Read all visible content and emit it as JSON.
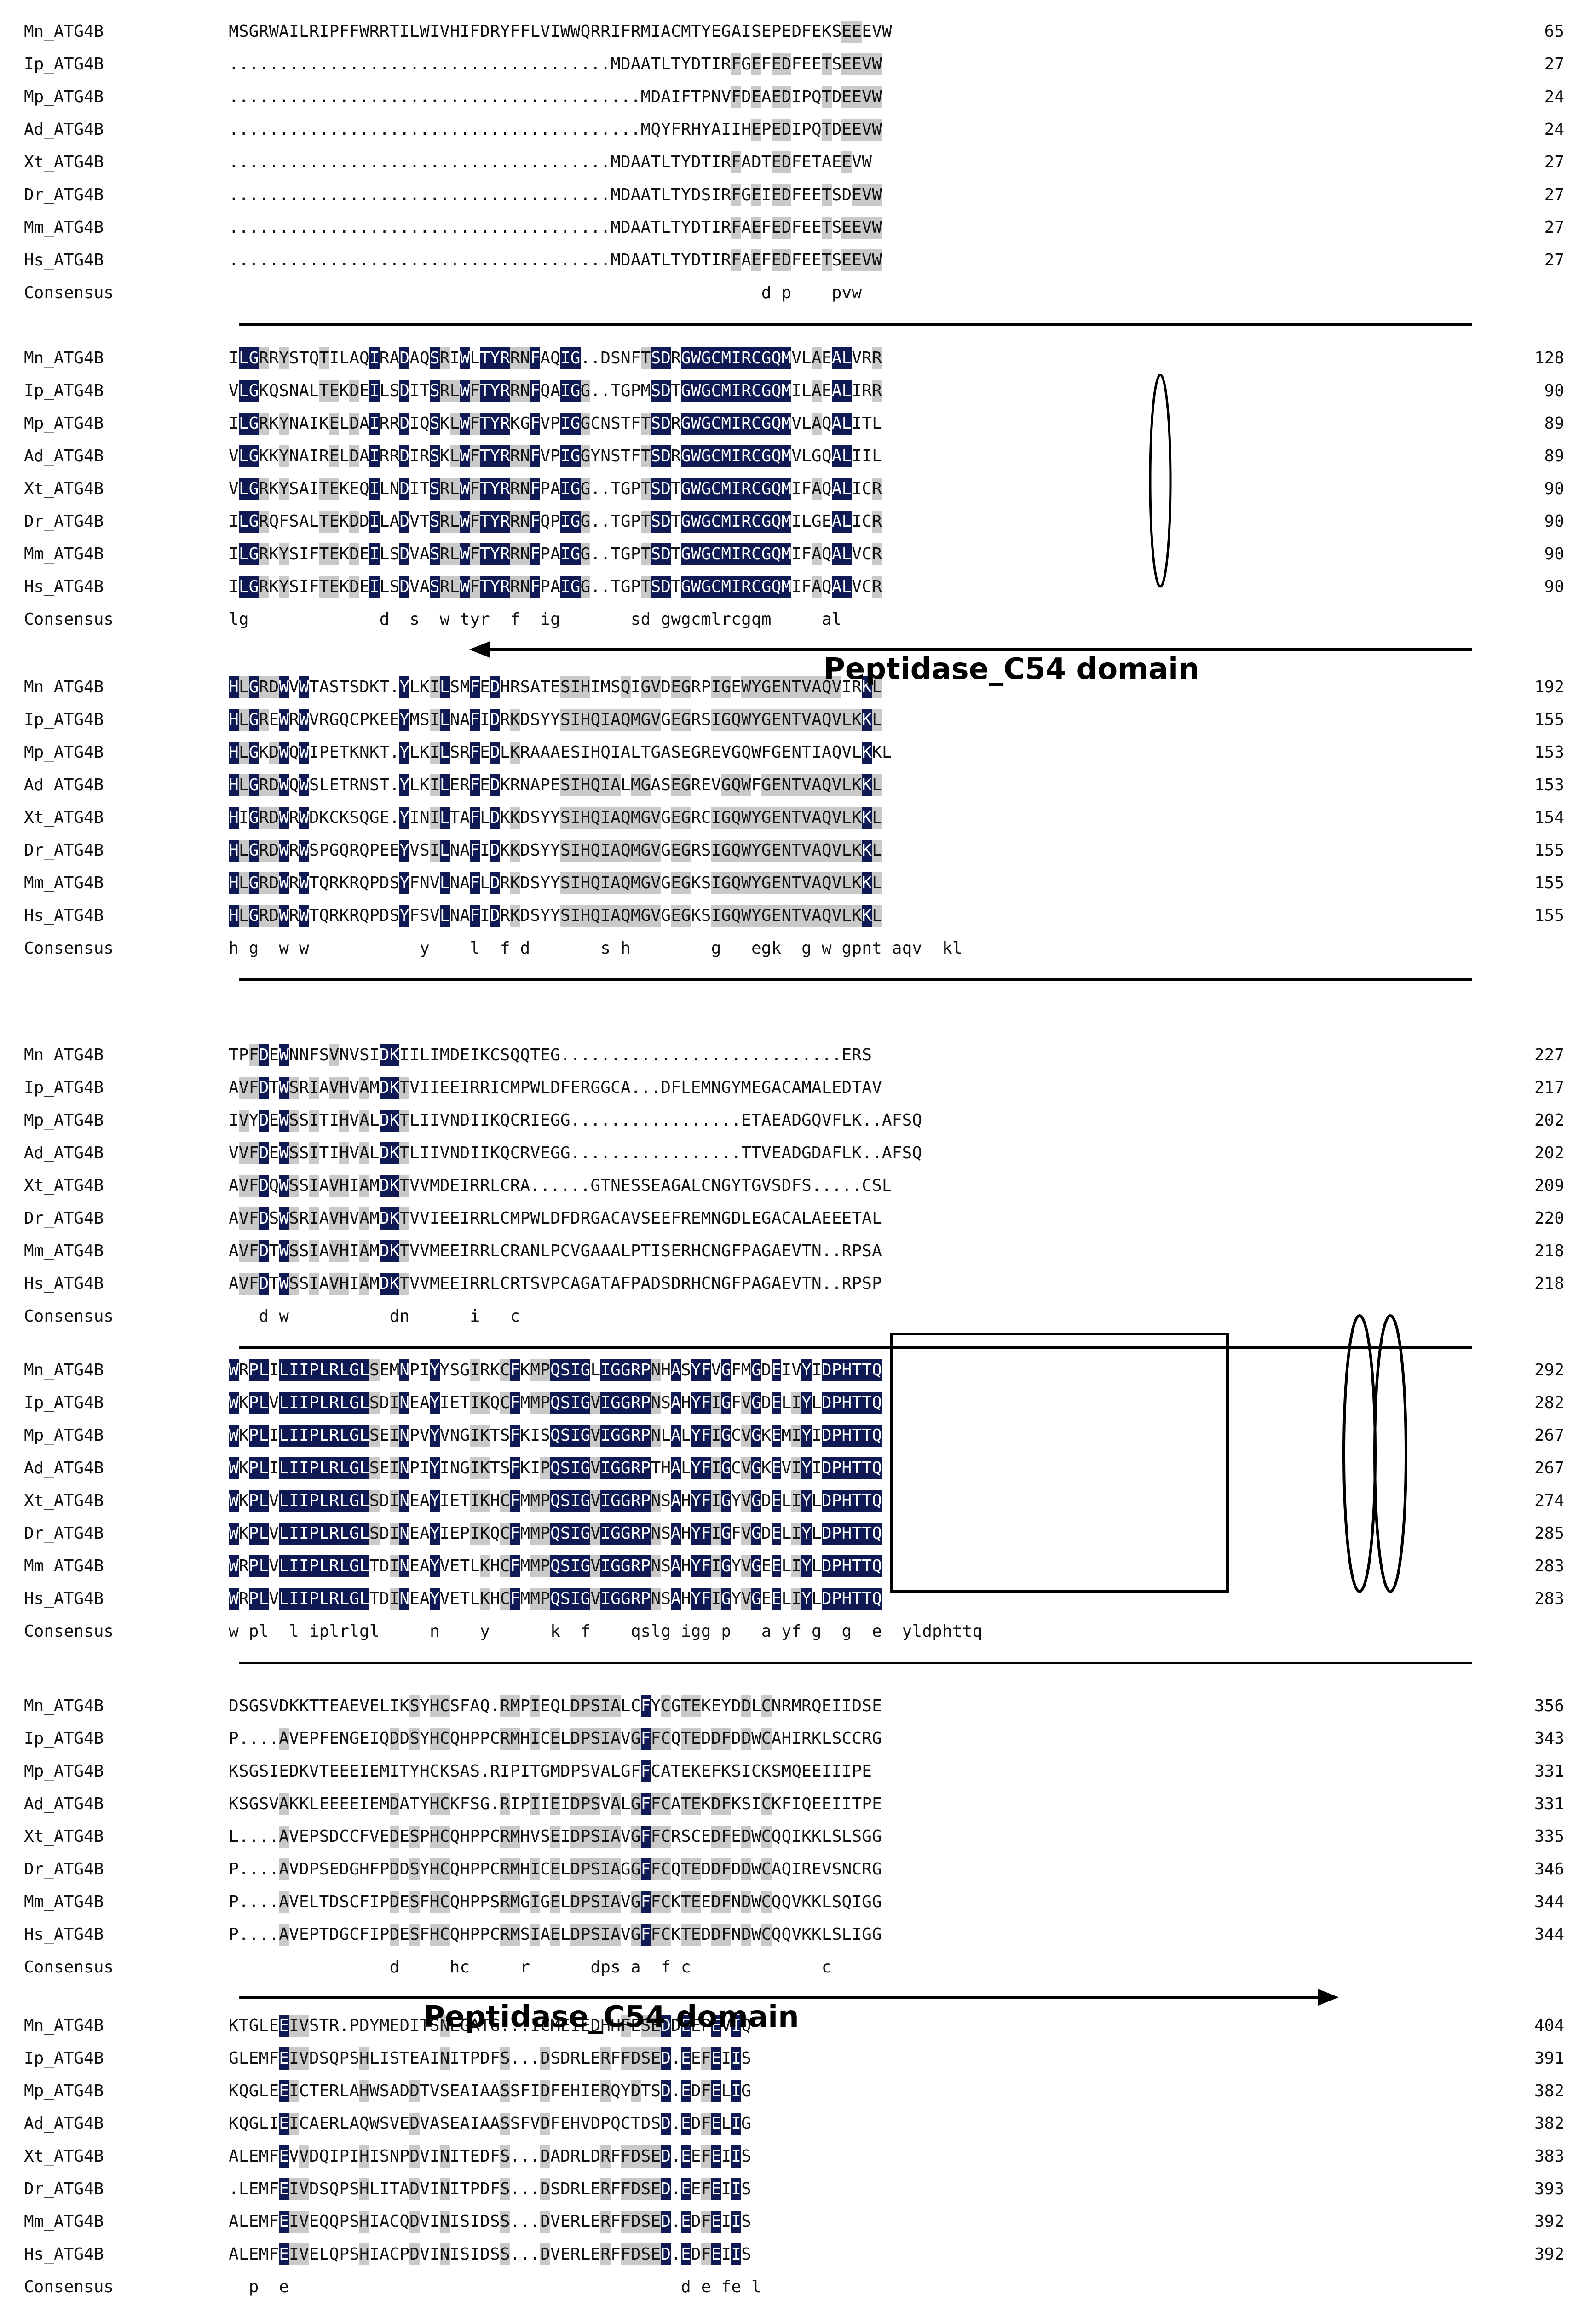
{
  "colors": {
    "identical_bg": "#0f1a55",
    "similar_bg": "#c9c9c9",
    "text": "#111111"
  },
  "blocks": [
    {
      "rows": [
        {
          "name": "Mn_ATG4B",
          "seq": "MSGRWAILRIPFFWRRTILWIVHIFDRYFFLVIWWQRRIFRMIACMTYEGAISEPEDFEKSEEEVW",
          "num": "65"
        },
        {
          "name": "Ip_ATG4B",
          "seq": "......................................MDAATLTYDTIRFGEFEDFEETSEEVW",
          "num": "27"
        },
        {
          "name": "Mp_ATG4B",
          "seq": ".........................................MDAIFTPNVFDEAEDIPQTDEEVW",
          "num": "24"
        },
        {
          "name": "Ad_ATG4B",
          "seq": ".........................................MQYFRHYAIIHEPEDIPQTDEEVW",
          "num": "24"
        },
        {
          "name": "Xt_ATG4B",
          "seq": "......................................MDAATLTYDTIRFADTEDFETAEEVW",
          "num": "27"
        },
        {
          "name": "Dr_ATG4B",
          "seq": "......................................MDAATLTYDSIRFGEIEDFEETSDEVW",
          "num": "27"
        },
        {
          "name": "Mm_ATG4B",
          "seq": "......................................MDAATLTYDTIRFAEFEDFEETSEEVW",
          "num": "27"
        },
        {
          "name": "Hs_ATG4B",
          "seq": "......................................MDAATLTYDTIRFAEFEDFEETSEEVW",
          "num": "27"
        }
      ],
      "consensus": {
        "name": "Consensus",
        "seq": "                                                     d p    pvw"
      }
    },
    {
      "rows": [
        {
          "name": "Mn_ATG4B",
          "seq": "ILGRRYSTQTILAQIRADAQSRIWLTYRRNFAQIG..DSNFTSDRGWGCMIRCGQMVLAEALVRR",
          "num": "128"
        },
        {
          "name": "Ip_ATG4B",
          "seq": "VLGKQSNALTEKDEILSDITSRLWFTYRRNFQAIGG..TGPMSDTGWGCMIRCGQMILAEALIRR",
          "num": "90"
        },
        {
          "name": "Mp_ATG4B",
          "seq": "ILGRKYNAIKELDAIRRDIQSKLWFTYRKGFVPIGGCNSTFTSDRGWGCMIRCGQMVLAQALITL",
          "num": "89"
        },
        {
          "name": "Ad_ATG4B",
          "seq": "VLGKKYNAIRELDAIRRDIRSKLWFTYRRNFVPIGGYNSTFTSDRGWGCMIRCGQMVLGQALIIL",
          "num": "89"
        },
        {
          "name": "Xt_ATG4B",
          "seq": "VLGRKYSAITEKEQILNDITSRLWFTYRRNFPAIGG..TGPTSDTGWGCMIRCGQMIFAQALICR",
          "num": "90"
        },
        {
          "name": "Dr_ATG4B",
          "seq": "ILGRQFSALTEKDDILADVTSRLWFTYRRNFQPIGG..TGPTSDTGWGCMIRCGQMILGEALICR",
          "num": "90"
        },
        {
          "name": "Mm_ATG4B",
          "seq": "ILGRKYSIFTEKDEILSDVASRLWFTYRRNFPAIGG..TGPTSDTGWGCMIRCGQMIFAQALVCR",
          "num": "90"
        },
        {
          "name": "Hs_ATG4B",
          "seq": "ILGRKYSIFTEKDEILSDVASRLWFTYRRNFPAIGG..TGPTSDTGWGCMIRCGQMIFAQALVCR",
          "num": "90"
        }
      ],
      "consensus": {
        "name": "Consensus",
        "seq": "lg             d  s  w tyr  f  ig       sd gwgcmlrcgqm     al"
      },
      "domain": {
        "label": "Peptidase_C54 domain",
        "arrow": "left"
      }
    },
    {
      "rows": [
        {
          "name": "Mn_ATG4B",
          "seq": "HLGRDWVWTASTSDKT.YLKILSMFEDHRSATESIHIMSQIGVDEGRPIGEWYGENTVAQVIRKL",
          "num": "192"
        },
        {
          "name": "Ip_ATG4B",
          "seq": "HLGREWRWVRGQCPKEEYMSILNAFIDRKDSYYSIHQIAQMGVGEGRSIGQWYGENTVAQVLKKL",
          "num": "155"
        },
        {
          "name": "Mp_ATG4B",
          "seq": "HLGKDWQWIPETKNKT.YLKILSRFEDLKRAAAESIHQIALTGASEGREVGQWFGENTIAQVLKKL",
          "num": "153"
        },
        {
          "name": "Ad_ATG4B",
          "seq": "HLGRDWQWSLETRNST.YLKILERFEDKRNAPESIHQIALMGASEGREVGQWFGENTVAQVLKKL",
          "num": "153"
        },
        {
          "name": "Xt_ATG4B",
          "seq": "HIGRDWRWDKCKSQGE.YINILTAFLDKKDSYYSIHQIAQMGVGEGRCIGQWYGENTVAQVLKKL",
          "num": "154"
        },
        {
          "name": "Dr_ATG4B",
          "seq": "HLGRDWRWSPGQRQPEEYVSILNAFIDKKDSYYSIHQIAQMGVGEGRSIGQWYGENTVAQVLKKL",
          "num": "155"
        },
        {
          "name": "Mm_ATG4B",
          "seq": "HLGRDWRWTQRKRQPDSYFNVLNAFLDRKDSYYSIHQIAQMGVGEGKSIGQWYGENTVAQVLKKL",
          "num": "155"
        },
        {
          "name": "Hs_ATG4B",
          "seq": "HLGRDWRWTQRKRQPDSYFSVLNAFIDRKDSYYSIHQIAQMGVGEGKSIGQWYGENTVAQVLKKL",
          "num": "155"
        }
      ],
      "consensus": {
        "name": "Consensus",
        "seq": "h g  w w           y    l  f d       s h        g   egk  g w gpnt aqv  kl"
      }
    },
    {
      "rows": [
        {
          "name": "Mn_ATG4B",
          "seq": "TPFDEWNNFSVNVSIDKIILIMDEIKCSQQTEG............................ERS",
          "num": "227"
        },
        {
          "name": "Ip_ATG4B",
          "seq": "AVFDTWSRIAVHVAMDKTVIIEEIRRICMPWLDFERGGCA...DFLEMNGYMEGACAMALEDTAV",
          "num": "217"
        },
        {
          "name": "Mp_ATG4B",
          "seq": "IVYDEWSSITIHVALDKTLIIVNDIIKQCRIEGG.................ETAEADGQVFLK..AFSQ",
          "num": "202"
        },
        {
          "name": "Ad_ATG4B",
          "seq": "VVFDEWSSITIHVALDKTLIIVNDIIKQCRVEGG.................TTVEADGDAFLK..AFSQ",
          "num": "202"
        },
        {
          "name": "Xt_ATG4B",
          "seq": "AVFDQWSSIAVHIAMDKTVVMDEIRRLCRA......GTNESSEAGALCNGYTGVSDFS.....CSL",
          "num": "209"
        },
        {
          "name": "Dr_ATG4B",
          "seq": "AVFDSWSRIAVHVAMDKTVVIEEIRRLCMPWLDFDRGACAVSEEFREMNGDLEGACALAEEETAL",
          "num": "220"
        },
        {
          "name": "Mm_ATG4B",
          "seq": "AVFDTWSSIAVHIAMDKTVVMEEIRRLCRANLPCVGAAALPTISERHCNGFPAGAEVTN..RPSA",
          "num": "218"
        },
        {
          "name": "Hs_ATG4B",
          "seq": "AVFDTWSSIAVHIAMDKTVVMEEIRRLCRTSVPCAGATAFPADSDRHCNGFPAGAEVTN..RPSP",
          "num": "218"
        }
      ],
      "consensus": {
        "name": "Consensus",
        "seq": "   d w          dn      i   c"
      }
    },
    {
      "rows": [
        {
          "name": "Mn_ATG4B",
          "seq": "WRPLILIIPLRLGLSEMNPIYYSGIRKCFKMPQSIGLIGGRPNHASYFVGFMGDEIVYIDPHTTQ",
          "num": "292"
        },
        {
          "name": "Ip_ATG4B",
          "seq": "WKPLVLIIPLRLGLSDINEAYIETIKQCFMMPQSIGVIGGRPNSAHYFIGFVGDELIYLDPHTTQ",
          "num": "282"
        },
        {
          "name": "Mp_ATG4B",
          "seq": "WKPLILIIPLRLGLSEINPVYVNGIKTSFKISQSIGVIGGRPNLALYFIGCVGKEMIYIDPHTTQ",
          "num": "267"
        },
        {
          "name": "Ad_ATG4B",
          "seq": "WKPLILIIPLRLGLSEINPIYINGIKTSFKIPQSIGVIGGRPTHALYFIGCVGKEVIYIDPHTTQ",
          "num": "267"
        },
        {
          "name": "Xt_ATG4B",
          "seq": "WKPLVLIIPLRLGLSDINEAYIETIKHCFMMPQSIGVIGGRPNSAHYFIGYVGDELIYLDPHTTQ",
          "num": "274"
        },
        {
          "name": "Dr_ATG4B",
          "seq": "WKPLVLIIPLRLGLSDINEAYIEPIKQCFMMPQSIGVIGGRPNSAHYFIGFVGDELIYLDPHTTQ",
          "num": "285"
        },
        {
          "name": "Mm_ATG4B",
          "seq": "WRPLVLIIPLRLGLTDINEAYVETLKHCFMMPQSIGVIGGRPNSAHYFIGYVGEELIYLDPHTTQ",
          "num": "283"
        },
        {
          "name": "Hs_ATG4B",
          "seq": "WRPLVLIIPLRLGLTDINEAYVETLKHCFMMPQSIGVIGGRPNSAHYFIGYVGEELIYLDPHTTQ",
          "num": "283"
        }
      ],
      "consensus": {
        "name": "Consensus",
        "seq": "w pl  l iplrlgl     n    y      k  f    qslg igg p   a yf g  g  e  yldphttq"
      }
    },
    {
      "rows": [
        {
          "name": "Mn_ATG4B",
          "seq": "DSGSVDKKTTEAEVELIKSYHCSFAQ.RMPIEQLDPSIALCFYCGTEKEYDDLCNRMRQEIIDSE",
          "num": "356"
        },
        {
          "name": "Ip_ATG4B",
          "seq": "P....AVEPFENGEIQDDSYHCQHPPCRMHICELDPSIAVGFFCQTEDDFDDWCAHIRKLSCCRG",
          "num": "343"
        },
        {
          "name": "Mp_ATG4B",
          "seq": "KSGSIEDKVTEEEIEMITYHCKSAS.RIPITGMDPSVALGFFCATEKEFKSICKSMQEEIIIPE",
          "num": "331"
        },
        {
          "name": "Ad_ATG4B",
          "seq": "KSGSVAKKLEEEEIEMDATYHCKFSG.RIPIIEIDPSVALGFFCATEKDFKSICKFIQEEIITPE",
          "num": "331"
        },
        {
          "name": "Xt_ATG4B",
          "seq": "L....AVEPSDCCFVEDESPHCQHPPCRMHVSEIDPSIAVGFFCRSCEDFEDWCQQIKKLSLSGG",
          "num": "335"
        },
        {
          "name": "Dr_ATG4B",
          "seq": "P....AVDPSEDGHFPDDSYHCQHPPCRMHICELDPSIAGGFFCQTEDDFDDWCAQIREVSNCRG",
          "num": "346"
        },
        {
          "name": "Mm_ATG4B",
          "seq": "P....AVELTDSCFIPDESFHCQHPPSRMGIGELDPSIAVGFFCKTEEDFNDWCQQVKKLSQIGG",
          "num": "344"
        },
        {
          "name": "Hs_ATG4B",
          "seq": "P....AVEPTDGCFIPDESFHCQHPPCRMSIAELDPSIAVGFFCKTEDDFNDWCQQVKKLSLIGG",
          "num": "344"
        }
      ],
      "consensus": {
        "name": "Consensus",
        "seq": "                d     hc     r      dps a  f c             c"
      },
      "domain": {
        "label": "Peptidase_C54 domain",
        "arrow": "right"
      }
    },
    {
      "rows": [
        {
          "name": "Mn_ATG4B",
          "seq": "KTGLEEIVSTR.PDYMEDITSNEGATG...ICMEIEDHHFESEDDEEPEVIQ",
          "num": "404"
        },
        {
          "name": "Ip_ATG4B",
          "seq": "GLEMFEIVDSQPSHLISTEAINITPDFS...DSDRLERFFDSED.EEFEIIS",
          "num": "391"
        },
        {
          "name": "Mp_ATG4B",
          "seq": "KQGLEEICTERLAHWSADDTVSEAIAASSFIDFEHIERQYDTSD.EDFELIG",
          "num": "382"
        },
        {
          "name": "Ad_ATG4B",
          "seq": "KQGLIEICAERLAQWSVEDVASEAIAASSFVDFEHVDPQCTDSD.EDFELIG",
          "num": "382"
        },
        {
          "name": "Xt_ATG4B",
          "seq": "ALEMFEVVDQIPIHISNPDVINITEDFS...DADRLDRFFDSED.EEFEIIS",
          "num": "383"
        },
        {
          "name": "Dr_ATG4B",
          "seq": ".LEMFEIVDSQPSHLITADVINITPDFS...DSDRLERFFDSED.EEFEIIS",
          "num": "393"
        },
        {
          "name": "Mm_ATG4B",
          "seq": "ALEMFEIVEQQPSHIACQDVINISIDSS...DVERLERFFDSED.EDFEIIS",
          "num": "392"
        },
        {
          "name": "Hs_ATG4B",
          "seq": "ALEMFEIVELQPSHIACPDVINISIDSS...DVERLERFFDSED.EDFEIIS",
          "num": "392"
        }
      ],
      "consensus": {
        "name": "Consensus",
        "seq": "  p  e                                       d e fe l"
      }
    }
  ]
}
